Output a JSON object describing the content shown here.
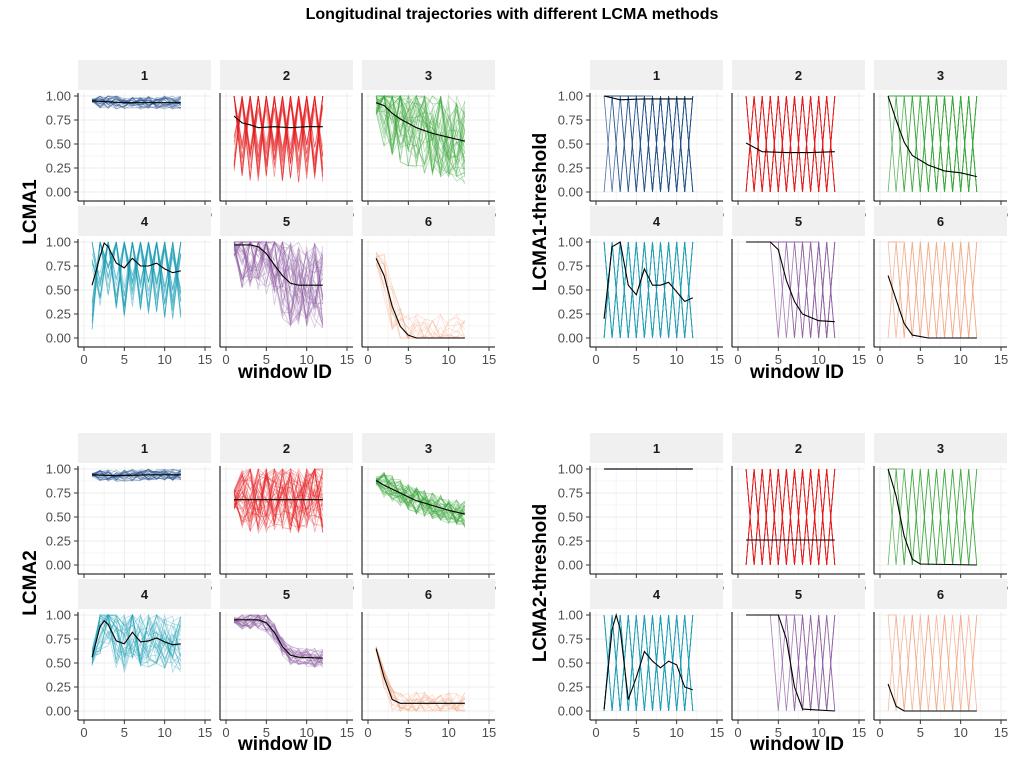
{
  "title": "Longitudinal trajectories with different LCMA methods",
  "x_label": "window ID",
  "x_ticks": [
    0,
    5,
    10,
    15
  ],
  "y_ticks": [
    0.0,
    0.25,
    0.5,
    0.75,
    1.0
  ],
  "y_tick_labels": [
    "0.00",
    "0.25",
    "0.50",
    "0.75",
    "1.00"
  ],
  "x_tick_labels": [
    "0",
    "5",
    "10",
    "15"
  ],
  "class_colors": [
    "#1f4e8c",
    "#e41a1c",
    "#3aa639",
    "#1a9eb5",
    "#8e5ea2",
    "#f4a582"
  ],
  "mean_line_color": "#000000",
  "chart_data": [
    {
      "type": "line",
      "ylabel": "LCMA1",
      "xlabel": "window ID",
      "xlim": [
        0,
        15
      ],
      "ylim": [
        0,
        1
      ],
      "grid": true,
      "facets": [
        {
          "label": "1",
          "style": "band",
          "n": 26,
          "spread": 0.07,
          "mean": [
            [
              1,
              0.95
            ],
            [
              3,
              0.94
            ],
            [
              5,
              0.93
            ],
            [
              8,
              0.93
            ],
            [
              12,
              0.93
            ]
          ]
        },
        {
          "label": "2",
          "style": "zigzag",
          "n": 22,
          "spread": 0.45,
          "period": 1,
          "mean": [
            [
              1,
              0.79
            ],
            [
              2,
              0.72
            ],
            [
              3,
              0.7
            ],
            [
              4,
              0.67
            ],
            [
              6,
              0.68
            ],
            [
              8,
              0.67
            ],
            [
              10,
              0.68
            ],
            [
              12,
              0.68
            ]
          ]
        },
        {
          "label": "3",
          "style": "band",
          "n": 40,
          "spread": 0.45,
          "mean": [
            [
              1,
              0.93
            ],
            [
              2,
              0.9
            ],
            [
              3,
              0.82
            ],
            [
              4,
              0.76
            ],
            [
              6,
              0.67
            ],
            [
              8,
              0.61
            ],
            [
              10,
              0.57
            ],
            [
              12,
              0.53
            ]
          ]
        },
        {
          "label": "4",
          "style": "zigzag",
          "n": 22,
          "spread": 0.4,
          "period": 1,
          "mean": [
            [
              1,
              0.55
            ],
            [
              2,
              0.85
            ],
            [
              2.5,
              0.99
            ],
            [
              3,
              0.95
            ],
            [
              4,
              0.78
            ],
            [
              5,
              0.73
            ],
            [
              6,
              0.83
            ],
            [
              7,
              0.75
            ],
            [
              8,
              0.75
            ],
            [
              9,
              0.78
            ],
            [
              10,
              0.72
            ],
            [
              11,
              0.68
            ],
            [
              12,
              0.7
            ]
          ]
        },
        {
          "label": "5",
          "style": "band",
          "n": 40,
          "spread": 0.45,
          "mean": [
            [
              1,
              0.97
            ],
            [
              3,
              0.97
            ],
            [
              4,
              0.95
            ],
            [
              5,
              0.88
            ],
            [
              6,
              0.76
            ],
            [
              7,
              0.65
            ],
            [
              8,
              0.57
            ],
            [
              9,
              0.55
            ],
            [
              12,
              0.55
            ]
          ]
        },
        {
          "label": "6",
          "style": "band",
          "n": 14,
          "spread": 0.25,
          "mean": [
            [
              1,
              0.83
            ],
            [
              2,
              0.65
            ],
            [
              3,
              0.33
            ],
            [
              4,
              0.12
            ],
            [
              5,
              0.03
            ],
            [
              6,
              0.0
            ],
            [
              12,
              0.0
            ]
          ]
        }
      ]
    },
    {
      "type": "line",
      "ylabel": "LCMA1-threshold",
      "xlabel": "window ID",
      "xlim": [
        0,
        15
      ],
      "ylim": [
        0,
        1
      ],
      "grid": true,
      "facets": [
        {
          "label": "1",
          "style": "binary",
          "n": 8,
          "start": 1,
          "mean": [
            [
              1,
              1.0
            ],
            [
              3,
              0.96
            ],
            [
              6,
              0.97
            ],
            [
              9,
              0.97
            ],
            [
              12,
              0.97
            ]
          ]
        },
        {
          "label": "2",
          "style": "binary",
          "n": 10,
          "start": 0,
          "mean": [
            [
              1,
              0.51
            ],
            [
              3,
              0.42
            ],
            [
              6,
              0.41
            ],
            [
              9,
              0.41
            ],
            [
              12,
              0.42
            ]
          ]
        },
        {
          "label": "3",
          "style": "binary",
          "n": 10,
          "start": 1,
          "mean": [
            [
              1,
              1.0
            ],
            [
              2,
              0.75
            ],
            [
              3,
              0.52
            ],
            [
              4,
              0.38
            ],
            [
              6,
              0.28
            ],
            [
              8,
              0.22
            ],
            [
              10,
              0.2
            ],
            [
              12,
              0.16
            ]
          ]
        },
        {
          "label": "4",
          "style": "binary",
          "n": 10,
          "start": 0,
          "mean": [
            [
              1,
              0.2
            ],
            [
              2,
              0.95
            ],
            [
              3,
              1.0
            ],
            [
              4,
              0.55
            ],
            [
              5,
              0.45
            ],
            [
              6,
              0.72
            ],
            [
              7,
              0.55
            ],
            [
              8,
              0.55
            ],
            [
              9,
              0.58
            ],
            [
              10,
              0.48
            ],
            [
              11,
              0.38
            ],
            [
              12,
              0.42
            ]
          ]
        },
        {
          "label": "5",
          "style": "binary",
          "n": 7,
          "start": 5,
          "mean": [
            [
              1,
              1.0
            ],
            [
              4,
              1.0
            ],
            [
              5,
              0.92
            ],
            [
              6,
              0.6
            ],
            [
              7,
              0.38
            ],
            [
              8,
              0.25
            ],
            [
              10,
              0.18
            ],
            [
              12,
              0.17
            ]
          ]
        },
        {
          "label": "6",
          "style": "binary",
          "n": 4,
          "start": 1,
          "mean": [
            [
              1,
              0.65
            ],
            [
              2,
              0.4
            ],
            [
              3,
              0.15
            ],
            [
              4,
              0.03
            ],
            [
              6,
              0.0
            ],
            [
              12,
              0.0
            ]
          ]
        }
      ]
    },
    {
      "type": "line",
      "ylabel": "LCMA2",
      "xlabel": "window ID",
      "xlim": [
        0,
        15
      ],
      "ylim": [
        0,
        1
      ],
      "grid": true,
      "facets": [
        {
          "label": "1",
          "style": "band",
          "n": 26,
          "spread": 0.06,
          "mean": [
            [
              1,
              0.94
            ],
            [
              4,
              0.93
            ],
            [
              8,
              0.94
            ],
            [
              12,
              0.94
            ]
          ]
        },
        {
          "label": "2",
          "style": "band",
          "n": 40,
          "spread": 0.35,
          "mean": [
            [
              1,
              0.68
            ],
            [
              12,
              0.68
            ]
          ]
        },
        {
          "label": "3",
          "style": "band",
          "n": 40,
          "spread": 0.14,
          "mean": [
            [
              1,
              0.88
            ],
            [
              2,
              0.83
            ],
            [
              4,
              0.75
            ],
            [
              6,
              0.67
            ],
            [
              8,
              0.62
            ],
            [
              10,
              0.57
            ],
            [
              12,
              0.53
            ]
          ]
        },
        {
          "label": "4",
          "style": "band",
          "n": 30,
          "spread": 0.3,
          "mean": [
            [
              1,
              0.56
            ],
            [
              2,
              0.88
            ],
            [
              2.5,
              0.94
            ],
            [
              3,
              0.9
            ],
            [
              4,
              0.73
            ],
            [
              5,
              0.7
            ],
            [
              6,
              0.82
            ],
            [
              7,
              0.72
            ],
            [
              8,
              0.73
            ],
            [
              9,
              0.76
            ],
            [
              10,
              0.72
            ],
            [
              11,
              0.69
            ],
            [
              12,
              0.7
            ]
          ]
        },
        {
          "label": "5",
          "style": "band",
          "n": 30,
          "spread": 0.1,
          "mean": [
            [
              1,
              0.95
            ],
            [
              4,
              0.95
            ],
            [
              5,
              0.92
            ],
            [
              6,
              0.82
            ],
            [
              7,
              0.67
            ],
            [
              8,
              0.58
            ],
            [
              9,
              0.56
            ],
            [
              12,
              0.55
            ]
          ]
        },
        {
          "label": "6",
          "style": "band",
          "n": 16,
          "spread": 0.12,
          "mean": [
            [
              1,
              0.65
            ],
            [
              2,
              0.35
            ],
            [
              3,
              0.12
            ],
            [
              4,
              0.08
            ],
            [
              6,
              0.08
            ],
            [
              12,
              0.08
            ]
          ]
        }
      ]
    },
    {
      "type": "line",
      "ylabel": "LCMA2-threshold",
      "xlabel": "window ID",
      "xlim": [
        0,
        15
      ],
      "ylim": [
        0,
        1
      ],
      "grid": true,
      "facets": [
        {
          "label": "1",
          "style": "flat",
          "n": 1,
          "mean": [
            [
              1,
              1.0
            ],
            [
              12,
              1.0
            ]
          ]
        },
        {
          "label": "2",
          "style": "binary",
          "n": 10,
          "start": 0,
          "mean": [
            [
              1,
              0.26
            ],
            [
              12,
              0.26
            ]
          ]
        },
        {
          "label": "3",
          "style": "binary",
          "n": 4,
          "start": 1,
          "mean": [
            [
              1,
              1.0
            ],
            [
              2,
              0.72
            ],
            [
              3,
              0.3
            ],
            [
              4,
              0.06
            ],
            [
              5,
              0.01
            ],
            [
              12,
              0.0
            ]
          ]
        },
        {
          "label": "4",
          "style": "binary",
          "n": 9,
          "start": 0,
          "mean": [
            [
              1,
              0.02
            ],
            [
              2,
              0.85
            ],
            [
              2.5,
              1.0
            ],
            [
              3,
              0.85
            ],
            [
              4,
              0.12
            ],
            [
              5,
              0.35
            ],
            [
              6,
              0.62
            ],
            [
              7,
              0.52
            ],
            [
              8,
              0.45
            ],
            [
              9,
              0.52
            ],
            [
              10,
              0.48
            ],
            [
              11,
              0.25
            ],
            [
              12,
              0.22
            ]
          ]
        },
        {
          "label": "5",
          "style": "binary",
          "n": 5,
          "start": 5,
          "mean": [
            [
              1,
              1.0
            ],
            [
              5,
              1.0
            ],
            [
              6,
              0.75
            ],
            [
              7,
              0.25
            ],
            [
              8,
              0.02
            ],
            [
              12,
              0.0
            ]
          ]
        },
        {
          "label": "6",
          "style": "binary",
          "n": 3,
          "start": 1,
          "mean": [
            [
              1,
              0.28
            ],
            [
              2,
              0.05
            ],
            [
              3,
              0.0
            ],
            [
              12,
              0.0
            ]
          ]
        }
      ]
    }
  ]
}
